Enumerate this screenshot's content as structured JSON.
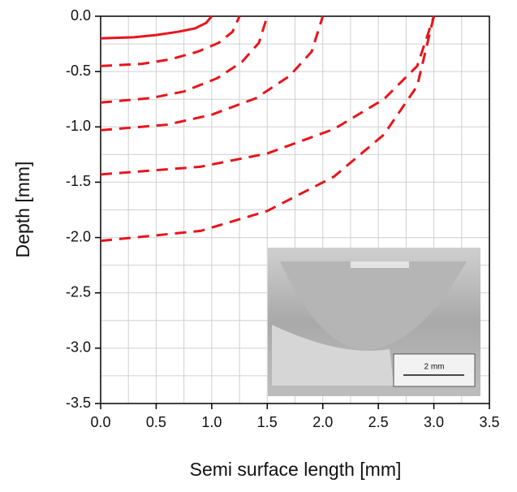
{
  "chart_data": {
    "type": "line",
    "x_label": "Semi surface length [mm]",
    "y_label": "Depth [mm]",
    "xlim": [
      0,
      3.5
    ],
    "xticks": [
      {
        "value": 0,
        "label": "0.0"
      },
      0.5,
      {
        "value": 1,
        "label": "1.0"
      },
      1.5,
      {
        "value": 2,
        "label": "2.0"
      },
      2.5,
      {
        "value": 3,
        "label": "3.0"
      },
      3.5
    ],
    "ylim": [
      -3.5,
      0
    ],
    "yticks": [
      {
        "value": -3.5,
        "label": "-3.5"
      },
      {
        "value": -3,
        "label": "-3.0"
      },
      -2.5,
      {
        "value": -2,
        "label": "-2.0"
      },
      -1.5,
      {
        "value": -1,
        "label": "-1.0"
      },
      -0.5,
      {
        "value": 0,
        "label": "0.0"
      }
    ],
    "grid": true,
    "grid_step": 0.25,
    "series": [
      {
        "color": "#e8141b",
        "dash": "solid",
        "x": [
          0,
          0.3,
          0.5,
          0.7,
          0.85,
          0.95,
          1
        ],
        "values": [
          -0.2,
          -0.19,
          -0.17,
          -0.14,
          -0.11,
          -0.06,
          0
        ]
      },
      {
        "color": "#e8141b",
        "dash": "dashed",
        "x": [
          0,
          0.375,
          0.625,
          0.875,
          1.063,
          1.188,
          1.25
        ],
        "values": [
          -0.45,
          -0.43,
          -0.39,
          -0.32,
          -0.24,
          -0.14,
          0
        ]
      },
      {
        "color": "#e8141b",
        "dash": "dashed",
        "x": [
          0,
          0.45,
          0.75,
          1.05,
          1.275,
          1.425,
          1.5
        ],
        "values": [
          -0.78,
          -0.74,
          -0.68,
          -0.56,
          -0.41,
          -0.24,
          0
        ]
      },
      {
        "color": "#e8141b",
        "dash": "dashed",
        "x": [
          0,
          0.6,
          1,
          1.4,
          1.7,
          1.9,
          2
        ],
        "values": [
          -1.03,
          -0.98,
          -0.89,
          -0.74,
          -0.54,
          -0.32,
          0
        ]
      },
      {
        "color": "#e8141b",
        "dash": "dashed",
        "x": [
          0,
          0.9,
          1.5,
          2.1,
          2.55,
          2.85,
          3
        ],
        "values": [
          -1.43,
          -1.36,
          -1.24,
          -1.02,
          -0.75,
          -0.45,
          0
        ]
      },
      {
        "color": "#e8141b",
        "dash": "dashed",
        "x": [
          0,
          0.9,
          1.5,
          2.1,
          2.55,
          2.85,
          3
        ],
        "values": [
          -2.03,
          -1.94,
          -1.76,
          -1.45,
          -1.07,
          -0.63,
          0
        ]
      }
    ],
    "inset_scale_label": "2 mm"
  }
}
